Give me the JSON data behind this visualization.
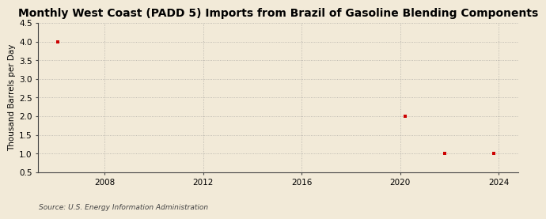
{
  "title": "Monthly West Coast (PADD 5) Imports from Brazil of Gasoline Blending Components",
  "ylabel": "Thousand Barrels per Day",
  "source": "Source: U.S. Energy Information Administration",
  "background_color": "#f2ead8",
  "plot_background_color": "#f2ead8",
  "x_data": [
    2006.1,
    2020.2,
    2021.8,
    2023.8
  ],
  "y_data": [
    4.0,
    2.0,
    1.0,
    1.0
  ],
  "marker_color": "#cc0000",
  "marker": "s",
  "marker_size": 3.5,
  "ylim": [
    0.5,
    4.5
  ],
  "xlim": [
    2005.3,
    2024.8
  ],
  "xticks": [
    2008,
    2012,
    2016,
    2020,
    2024
  ],
  "yticks": [
    0.5,
    1.0,
    1.5,
    2.0,
    2.5,
    3.0,
    3.5,
    4.0,
    4.5
  ],
  "grid_color": "#888888",
  "grid_alpha": 0.6,
  "grid_linewidth": 0.6,
  "title_fontsize": 10,
  "ylabel_fontsize": 7.5,
  "tick_fontsize": 7.5,
  "source_fontsize": 6.5
}
